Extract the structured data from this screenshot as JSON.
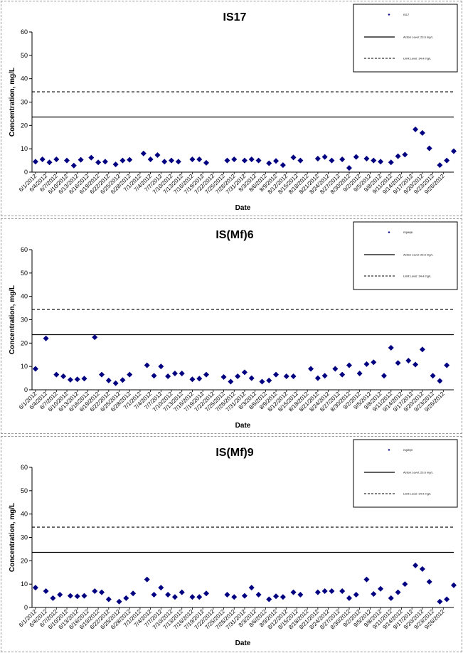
{
  "chart_data": [
    {
      "type": "scatter",
      "title": "IS17",
      "xlabel": "Date",
      "ylabel": "Concentration, mg/L",
      "ylim": [
        0,
        60
      ],
      "yticks": [
        0,
        10,
        20,
        30,
        40,
        50,
        60
      ],
      "grid": false,
      "legend": "top-right",
      "xticks": [
        "6/1/2012",
        "6/4/2012",
        "6/7/2012",
        "6/10/2012",
        "6/13/2012",
        "6/16/2012",
        "6/19/2012",
        "6/22/2012",
        "6/25/2012",
        "6/28/2012",
        "7/1/2012",
        "7/4/2012",
        "7/7/2012",
        "7/10/2012",
        "7/13/2012",
        "7/16/2012",
        "7/19/2012",
        "7/22/2012",
        "7/25/2012",
        "7/28/2012",
        "7/31/2012",
        "8/3/2012",
        "8/6/2012",
        "8/9/2012",
        "8/12/2012",
        "8/15/2012",
        "8/18/2012",
        "8/21/2012",
        "8/24/2012",
        "8/27/2012",
        "8/30/2012",
        "9/2/2012",
        "9/5/2012",
        "9/8/2012",
        "9/11/2012",
        "9/14/2012",
        "9/17/2012",
        "9/20/2012",
        "9/23/2012",
        "9/26/2012"
      ],
      "series": [
        {
          "name": "IS17",
          "marker": "diamond",
          "color": "#000080",
          "x": [
            "6/1/2012",
            "6/3/2012",
            "6/5/2012",
            "6/7/2012",
            "6/10/2012",
            "6/12/2012",
            "6/14/2012",
            "6/17/2012",
            "6/19/2012",
            "6/21/2012",
            "6/24/2012",
            "6/26/2012",
            "6/28/2012",
            "7/2/2012",
            "7/4/2012",
            "7/6/2012",
            "7/8/2012",
            "7/10/2012",
            "7/12/2012",
            "7/16/2012",
            "7/18/2012",
            "7/20/2012",
            "7/26/2012",
            "7/28/2012",
            "7/31/2012",
            "8/2/2012",
            "8/4/2012",
            "8/7/2012",
            "8/9/2012",
            "8/11/2012",
            "8/14/2012",
            "8/16/2012",
            "8/21/2012",
            "8/23/2012",
            "8/25/2012",
            "8/28/2012",
            "8/30/2012",
            "9/1/2012",
            "9/4/2012",
            "9/6/2012",
            "9/8/2012",
            "9/11/2012",
            "9/13/2012",
            "9/15/2012",
            "9/18/2012",
            "9/20/2012",
            "9/22/2012",
            "9/25/2012",
            "9/27/2012",
            "9/29/2012"
          ],
          "y": [
            4.5,
            5.5,
            4.2,
            5.5,
            5,
            2.8,
            5.3,
            6.2,
            4.2,
            4.5,
            3.3,
            5,
            5.3,
            8,
            5.5,
            7.3,
            4.5,
            5,
            4.5,
            5.5,
            5.5,
            4,
            5,
            5.5,
            5,
            5.5,
            5,
            3.8,
            4.8,
            3,
            6.3,
            5,
            5.8,
            6.5,
            5,
            5.5,
            1.8,
            6.5,
            5.8,
            5,
            4.5,
            4.2,
            6.8,
            7.5,
            18.3,
            16.8,
            10.2,
            3,
            5,
            9
          ]
        }
      ],
      "reference_lines": [
        {
          "name": "Action Level: 23.6 mg/L",
          "y": 23.6,
          "style": "solid"
        },
        {
          "name": "Limit Level: 34.4 mg/L",
          "y": 34.4,
          "style": "dashed"
        }
      ]
    },
    {
      "type": "scatter",
      "title": "IS(Mf)6",
      "xlabel": "Date",
      "ylabel": "Concentration, mg/L",
      "ylim": [
        0,
        60
      ],
      "yticks": [
        0,
        10,
        20,
        30,
        40,
        50,
        60
      ],
      "grid": false,
      "legend": "top-right",
      "xticks": [
        "6/1/2012",
        "6/4/2012",
        "6/7/2012",
        "6/10/2012",
        "6/13/2012",
        "6/16/2012",
        "6/19/2012",
        "6/22/2012",
        "6/25/2012",
        "6/28/2012",
        "7/1/2012",
        "7/4/2012",
        "7/7/2012",
        "7/10/2012",
        "7/13/2012",
        "7/16/2012",
        "7/19/2012",
        "7/22/2012",
        "7/25/2012",
        "7/28/2012",
        "7/31/2012",
        "8/3/2012",
        "8/6/2012",
        "8/9/2012",
        "8/12/2012",
        "8/15/2012",
        "8/18/2012",
        "8/21/2012",
        "8/24/2012",
        "8/27/2012",
        "8/30/2012",
        "9/2/2012",
        "9/5/2012",
        "9/8/2012",
        "9/11/2012",
        "9/14/2012",
        "9/17/2012",
        "9/20/2012",
        "9/23/2012",
        "9/26/2012"
      ],
      "series": [
        {
          "name": "IS(Mf)6",
          "marker": "diamond",
          "color": "#000080",
          "x": [
            "6/1/2012",
            "6/4/2012",
            "6/7/2012",
            "6/9/2012",
            "6/11/2012",
            "6/13/2012",
            "6/15/2012",
            "6/18/2012",
            "6/20/2012",
            "6/22/2012",
            "6/24/2012",
            "6/26/2012",
            "6/28/2012",
            "7/3/2012",
            "7/5/2012",
            "7/7/2012",
            "7/9/2012",
            "7/11/2012",
            "7/13/2012",
            "7/16/2012",
            "7/18/2012",
            "7/20/2012",
            "7/25/2012",
            "7/27/2012",
            "7/29/2012",
            "7/31/2012",
            "8/2/2012",
            "8/5/2012",
            "8/7/2012",
            "8/9/2012",
            "8/12/2012",
            "8/14/2012",
            "8/19/2012",
            "8/21/2012",
            "8/23/2012",
            "8/26/2012",
            "8/28/2012",
            "8/30/2012",
            "9/2/2012",
            "9/4/2012",
            "9/6/2012",
            "9/9/2012",
            "9/11/2012",
            "9/13/2012",
            "9/16/2012",
            "9/18/2012",
            "9/20/2012",
            "9/23/2012",
            "9/25/2012",
            "9/27/2012"
          ],
          "y": [
            9,
            22,
            6.5,
            5.8,
            4.3,
            4.5,
            4.8,
            22.5,
            6.5,
            4,
            2.8,
            4.2,
            6.5,
            10.5,
            6,
            10,
            5.8,
            7,
            7,
            4.5,
            4.8,
            6.5,
            5.5,
            3.5,
            5.8,
            7.5,
            5,
            3.5,
            4,
            6.5,
            5.8,
            5.8,
            9,
            5,
            6,
            9,
            6.5,
            10.5,
            7,
            11,
            11.8,
            6,
            18,
            11.5,
            12.5,
            10.8,
            17.3,
            6,
            3.8,
            10.5
          ]
        }
      ],
      "reference_lines": [
        {
          "name": "Action Level: 23.6 mg/L",
          "y": 23.6,
          "style": "solid"
        },
        {
          "name": "Limit Level: 34.4 mg/L",
          "y": 34.4,
          "style": "dashed"
        }
      ]
    },
    {
      "type": "scatter",
      "title": "IS(Mf)9",
      "xlabel": "Date",
      "ylabel": "Concentration, mg/L",
      "ylim": [
        0,
        60
      ],
      "yticks": [
        0,
        10,
        20,
        30,
        40,
        50,
        60
      ],
      "grid": false,
      "legend": "top-right",
      "xticks": [
        "6/1/2012",
        "6/4/2012",
        "6/7/2012",
        "6/10/2012",
        "6/13/2012",
        "6/16/2012",
        "6/19/2012",
        "6/22/2012",
        "6/25/2012",
        "6/28/2012",
        "7/1/2012",
        "7/4/2012",
        "7/7/2012",
        "7/10/2012",
        "7/13/2012",
        "7/16/2012",
        "7/19/2012",
        "7/22/2012",
        "7/25/2012",
        "7/28/2012",
        "7/31/2012",
        "8/3/2012",
        "8/6/2012",
        "8/9/2012",
        "8/12/2012",
        "8/15/2012",
        "8/18/2012",
        "8/21/2012",
        "8/24/2012",
        "8/27/2012",
        "8/30/2012",
        "9/2/2012",
        "9/5/2012",
        "9/8/2012",
        "9/11/2012",
        "9/14/2012",
        "9/17/2012",
        "9/20/2012",
        "9/23/2012",
        "9/26/2012"
      ],
      "series": [
        {
          "name": "IS(Mf)9",
          "marker": "diamond",
          "color": "#000080",
          "x": [
            "6/1/2012",
            "6/4/2012",
            "6/6/2012",
            "6/8/2012",
            "6/11/2012",
            "6/13/2012",
            "6/15/2012",
            "6/18/2012",
            "6/20/2012",
            "6/22/2012",
            "6/25/2012",
            "6/27/2012",
            "6/29/2012",
            "7/3/2012",
            "7/5/2012",
            "7/7/2012",
            "7/9/2012",
            "7/11/2012",
            "7/13/2012",
            "7/16/2012",
            "7/18/2012",
            "7/20/2012",
            "7/26/2012",
            "7/28/2012",
            "7/31/2012",
            "8/2/2012",
            "8/4/2012",
            "8/7/2012",
            "8/9/2012",
            "8/11/2012",
            "8/14/2012",
            "8/16/2012",
            "8/21/2012",
            "8/23/2012",
            "8/25/2012",
            "8/28/2012",
            "8/30/2012",
            "9/1/2012",
            "9/4/2012",
            "9/6/2012",
            "9/8/2012",
            "9/11/2012",
            "9/13/2012",
            "9/15/2012",
            "9/18/2012",
            "9/20/2012",
            "9/22/2012",
            "9/25/2012",
            "9/27/2012",
            "9/29/2012"
          ],
          "y": [
            8.5,
            7,
            4,
            5.5,
            5,
            4.8,
            5,
            7,
            6.5,
            3.5,
            2.5,
            4,
            6,
            12,
            5.5,
            8.5,
            5.5,
            4.5,
            6.5,
            4.5,
            4.5,
            6,
            5.5,
            4.5,
            5,
            8.5,
            5.5,
            3.5,
            4.8,
            4.5,
            6.5,
            5.5,
            6.5,
            7,
            7,
            7,
            4,
            5.5,
            12,
            5.8,
            8,
            4,
            6.5,
            10,
            18,
            16.5,
            11,
            2.5,
            3.5,
            9.5
          ]
        }
      ],
      "reference_lines": [
        {
          "name": "Action Level: 23.6 mg/L",
          "y": 23.6,
          "style": "solid"
        },
        {
          "name": "Limit Level: 34.4 mg/L",
          "y": 34.4,
          "style": "dashed"
        }
      ]
    }
  ]
}
